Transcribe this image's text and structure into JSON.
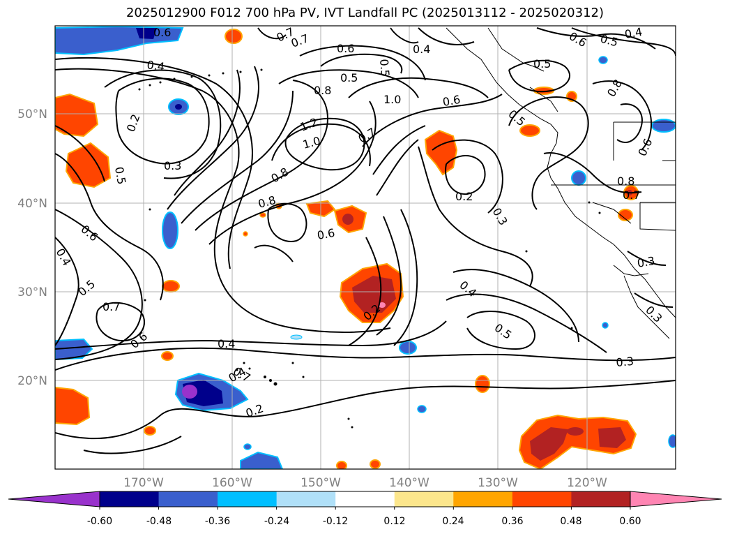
{
  "title": "2025012900 F012 700 hPa PV, IVT Landfall PC (2025013112 - 2025020312)",
  "map": {
    "lat_labels": [
      "50°N",
      "40°N",
      "30°N",
      "20°N"
    ],
    "lon_labels": [
      "170°W",
      "160°W",
      "150°W",
      "140°W",
      "130°W",
      "120°W"
    ]
  },
  "colorbar": {
    "colors": [
      "#9932cc",
      "#00008b",
      "#3a5fcd",
      "#00bfff",
      "#b0e0f8",
      "#ffffff",
      "#fce68c",
      "#ffa500",
      "#ff4500",
      "#b22222",
      "#ff85b3"
    ],
    "tick_labels": [
      "-0.60",
      "-0.48",
      "-0.36",
      "-0.24",
      "-0.12",
      "0.12",
      "0.24",
      "0.36",
      "0.48",
      "0.60"
    ]
  },
  "contour_labels": [
    "0.6",
    "0.4",
    "0.2",
    "0.3",
    "0.5",
    "0.7",
    "0.6",
    "0.5",
    "0.8",
    "1.0",
    "1.2",
    "1.0",
    "0.8",
    "0.8",
    "0.6",
    "0.7",
    "0.6",
    "0.5",
    "0.4",
    "0.5",
    "0.2",
    "0.3",
    "0.4",
    "0.5",
    "0.3",
    "0.4",
    "0.2",
    "0.7",
    "0.6",
    "0.5",
    "0.4",
    "0.5",
    "0.6",
    "0.4",
    "0.7",
    "0.4",
    "0.2",
    "0.6",
    "0.7",
    "0.3",
    "0.8",
    "0.7",
    "0.3",
    "0.5",
    "0.6",
    "0.8"
  ]
}
